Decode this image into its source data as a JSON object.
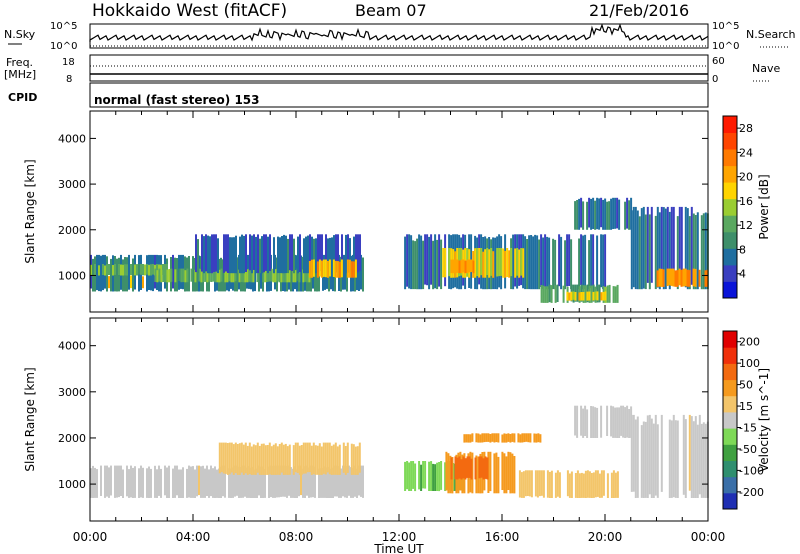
{
  "header": {
    "station": "Hokkaido West (fitACF)",
    "beam": "Beam 07",
    "date": "21/Feb/2016"
  },
  "status_panels": {
    "nsky_label": "N.Sky",
    "freq_label": "Freq.",
    "freq_unit": "[MHz]",
    "cpid_label": "CPID",
    "nsearch_label": "N.Search",
    "nave_label": "Nave",
    "noise_left_ticks": [
      "10^5",
      "10^0"
    ],
    "noise_right_ticks": [
      "10^5",
      "10^0"
    ],
    "freq_ticks": [
      "18",
      "8"
    ],
    "nave_ticks": [
      "60",
      "0"
    ],
    "cpid_text": "normal (fast stereo) 153"
  },
  "chart_data": [
    {
      "type": "heatmap",
      "name": "power",
      "ylabel": "Slant Range [km]",
      "yticks": [
        1000,
        2000,
        3000,
        4000
      ],
      "ylim": [
        200,
        4600
      ],
      "xlim": [
        0,
        24
      ],
      "colorbar": {
        "label": "Power [dB]",
        "ticks": [
          "4",
          "8",
          "12",
          "16",
          "20",
          "24",
          "28"
        ],
        "colors": [
          "#0a14d8",
          "#3a3fc0",
          "#1f6ea0",
          "#3e8f6a",
          "#5aa860",
          "#9acd32",
          "#ffd400",
          "#ffa500",
          "#ff7a00",
          "#ff4500",
          "#ff1a00"
        ]
      },
      "regions": [
        {
          "t0": 0.0,
          "t1": 3.0,
          "r0": 720,
          "r1": 1000,
          "v": 20
        },
        {
          "t0": 0.0,
          "t1": 10.6,
          "r0": 650,
          "r1": 1450,
          "v": 9
        },
        {
          "t0": 0.0,
          "t1": 3.0,
          "r0": 1000,
          "r1": 1250,
          "v": 14
        },
        {
          "t0": 2.5,
          "t1": 8.5,
          "r0": 850,
          "r1": 1150,
          "v": 14
        },
        {
          "t0": 4.0,
          "t1": 10.5,
          "r0": 1050,
          "r1": 1900,
          "v": 7
        },
        {
          "t0": 8.5,
          "t1": 10.3,
          "r0": 950,
          "r1": 1350,
          "v": 20
        },
        {
          "t0": 12.2,
          "t1": 20.0,
          "r0": 700,
          "r1": 1900,
          "v": 8
        },
        {
          "t0": 13.6,
          "t1": 16.8,
          "r0": 950,
          "r1": 1600,
          "v": 18
        },
        {
          "t0": 14.0,
          "t1": 15.0,
          "r0": 1050,
          "r1": 1350,
          "v": 22
        },
        {
          "t0": 17.5,
          "t1": 20.5,
          "r0": 400,
          "r1": 800,
          "v": 12
        },
        {
          "t0": 18.5,
          "t1": 20.0,
          "r0": 450,
          "r1": 650,
          "v": 18
        },
        {
          "t0": 18.8,
          "t1": 21.0,
          "r0": 2000,
          "r1": 2700,
          "v": 8
        },
        {
          "t0": 21.0,
          "t1": 24.0,
          "r0": 700,
          "r1": 2500,
          "v": 8
        },
        {
          "t0": 22.0,
          "t1": 24.0,
          "r0": 750,
          "r1": 1150,
          "v": 22
        }
      ]
    },
    {
      "type": "heatmap",
      "name": "velocity",
      "ylabel": "Slant Range [km]",
      "yticks": [
        1000,
        2000,
        3000,
        4000
      ],
      "ylim": [
        200,
        4600
      ],
      "xlim": [
        0,
        24
      ],
      "colorbar": {
        "label": "Velocity [m s^-1]",
        "ticks": [
          "200",
          "100",
          "50",
          "15",
          "-15",
          "-50",
          "-100",
          "-200"
        ],
        "colors": [
          "#1f2fb3",
          "#3a6fa8",
          "#2f8f6f",
          "#3fa040",
          "#7ed957",
          "#c8c8c8",
          "#f3c56a",
          "#f59a1e",
          "#f36a10",
          "#f0300a",
          "#e00000"
        ]
      },
      "regions": [
        {
          "t0": 0.0,
          "t1": 10.6,
          "r0": 700,
          "r1": 1400,
          "v": -5
        },
        {
          "t0": 5.0,
          "t1": 10.5,
          "r0": 1200,
          "r1": 1900,
          "v": -30
        },
        {
          "t0": 12.2,
          "t1": 14.5,
          "r0": 850,
          "r1": 1500,
          "v": 40
        },
        {
          "t0": 13.8,
          "t1": 16.5,
          "r0": 800,
          "r1": 1700,
          "v": -70
        },
        {
          "t0": 14.0,
          "t1": 15.5,
          "r0": 1100,
          "r1": 1600,
          "v": -120
        },
        {
          "t0": 14.5,
          "t1": 17.5,
          "r0": 1900,
          "r1": 2100,
          "v": -70
        },
        {
          "t0": 16.5,
          "t1": 20.5,
          "r0": 700,
          "r1": 1300,
          "v": -30
        },
        {
          "t0": 18.8,
          "t1": 21.0,
          "r0": 2000,
          "r1": 2700,
          "v": -5
        },
        {
          "t0": 21.0,
          "t1": 24.0,
          "r0": 700,
          "r1": 2500,
          "v": -5
        }
      ]
    }
  ],
  "xaxis": {
    "ticks": [
      "00:00",
      "04:00",
      "08:00",
      "12:00",
      "16:00",
      "20:00",
      "00:00"
    ],
    "label": "Time UT"
  }
}
